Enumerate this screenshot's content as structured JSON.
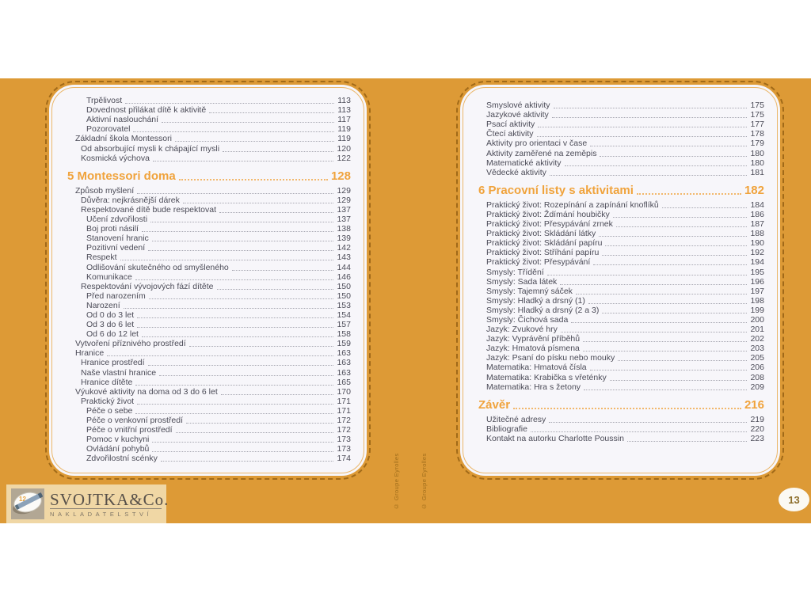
{
  "meta": {
    "page_number": "13",
    "spine_credit": "© Groupe Eyrolles"
  },
  "colors": {
    "background_band": "#DD9A36",
    "page_background": "#F7F6FA",
    "body_text": "#4B4B57",
    "heading_accent": "#F0A33C",
    "logo_box": "#F0D7A5",
    "badge_text": "#8D6E2B"
  },
  "publisher": {
    "name": "SVOJTKA&Co.",
    "subtitle": "NAKLADATELSTVÍ",
    "icon_number": "12"
  },
  "left_page": {
    "items": [
      {
        "type": "entry",
        "level": 3,
        "label": "Trpělivost",
        "page": "113"
      },
      {
        "type": "entry",
        "level": 3,
        "label": "Dovednost přilákat dítě k aktivitě",
        "page": "113"
      },
      {
        "type": "entry",
        "level": 3,
        "label": "Aktivní naslouchání",
        "page": "117"
      },
      {
        "type": "entry",
        "level": 3,
        "label": "Pozorovatel",
        "page": "119"
      },
      {
        "type": "entry",
        "level": 1,
        "label": "Základní škola Montessori",
        "page": "119"
      },
      {
        "type": "entry",
        "level": 2,
        "label": "Od absorbující mysli k chápající mysli",
        "page": "120"
      },
      {
        "type": "entry",
        "level": 2,
        "label": "Kosmická výchova",
        "page": "122"
      },
      {
        "type": "heading",
        "level": 0,
        "label": "5 Montessori doma",
        "page": "128"
      },
      {
        "type": "entry",
        "level": 1,
        "label": "Způsob myšlení",
        "page": "129"
      },
      {
        "type": "entry",
        "level": 2,
        "label": "Důvěra: nejkrásnější dárek",
        "page": "129"
      },
      {
        "type": "entry",
        "level": 2,
        "label": "Respektované dítě bude respektovat",
        "page": "137"
      },
      {
        "type": "entry",
        "level": 3,
        "label": "Učení zdvořilosti",
        "page": "137"
      },
      {
        "type": "entry",
        "level": 3,
        "label": "Boj proti násilí",
        "page": "138"
      },
      {
        "type": "entry",
        "level": 3,
        "label": "Stanovení hranic",
        "page": "139"
      },
      {
        "type": "entry",
        "level": 3,
        "label": "Pozitivní vedení",
        "page": "142"
      },
      {
        "type": "entry",
        "level": 3,
        "label": "Respekt",
        "page": "143"
      },
      {
        "type": "entry",
        "level": 3,
        "label": "Odlišování skutečného od smyšleného",
        "page": "144"
      },
      {
        "type": "entry",
        "level": 3,
        "label": "Komunikace",
        "page": "146"
      },
      {
        "type": "entry",
        "level": 2,
        "label": "Respektování vývojových fází dítěte",
        "page": "150"
      },
      {
        "type": "entry",
        "level": 3,
        "label": "Před narozením",
        "page": "150"
      },
      {
        "type": "entry",
        "level": 3,
        "label": "Narození",
        "page": "153"
      },
      {
        "type": "entry",
        "level": 3,
        "label": "Od 0 do 3 let",
        "page": "154"
      },
      {
        "type": "entry",
        "level": 3,
        "label": "Od 3 do 6 let",
        "page": "157"
      },
      {
        "type": "entry",
        "level": 3,
        "label": "Od 6 do 12 let",
        "page": "158"
      },
      {
        "type": "entry",
        "level": 1,
        "label": "Vytvoření příznivého prostředí",
        "page": "159"
      },
      {
        "type": "entry",
        "level": 1,
        "label": "Hranice",
        "page": "163"
      },
      {
        "type": "entry",
        "level": 2,
        "label": "Hranice prostředí",
        "page": "163"
      },
      {
        "type": "entry",
        "level": 2,
        "label": "Naše vlastní hranice",
        "page": "163"
      },
      {
        "type": "entry",
        "level": 2,
        "label": "Hranice dítěte",
        "page": "165"
      },
      {
        "type": "entry",
        "level": 1,
        "label": "Výukové aktivity na doma od 3 do 6 let",
        "page": "170"
      },
      {
        "type": "entry",
        "level": 2,
        "label": "Praktický život",
        "page": "171"
      },
      {
        "type": "entry",
        "level": 3,
        "label": "Péče o sebe",
        "page": "171"
      },
      {
        "type": "entry",
        "level": 3,
        "label": "Péče o venkovní prostředí",
        "page": "172"
      },
      {
        "type": "entry",
        "level": 3,
        "label": "Péče o vnitřní prostředí",
        "page": "172"
      },
      {
        "type": "entry",
        "level": 3,
        "label": "Pomoc v kuchyni",
        "page": "173"
      },
      {
        "type": "entry",
        "level": 3,
        "label": "Ovládání pohybů",
        "page": "173"
      },
      {
        "type": "entry",
        "level": 3,
        "label": "Zdvořilostní scénky",
        "page": "174"
      }
    ]
  },
  "right_page": {
    "items": [
      {
        "type": "entry",
        "level": 1,
        "label": "Smyslové aktivity",
        "page": "175"
      },
      {
        "type": "entry",
        "level": 1,
        "label": "Jazykové aktivity",
        "page": "175"
      },
      {
        "type": "entry",
        "level": 1,
        "label": "Psací aktivity",
        "page": "177"
      },
      {
        "type": "entry",
        "level": 1,
        "label": "Čtecí aktivity",
        "page": "178"
      },
      {
        "type": "entry",
        "level": 1,
        "label": "Aktivity pro orientaci v čase",
        "page": "179"
      },
      {
        "type": "entry",
        "level": 1,
        "label": "Aktivity zaměřené na zeměpis",
        "page": "180"
      },
      {
        "type": "entry",
        "level": 1,
        "label": "Matematické aktivity",
        "page": "180"
      },
      {
        "type": "entry",
        "level": 1,
        "label": "Vědecké aktivity",
        "page": "181"
      },
      {
        "type": "heading",
        "level": 0,
        "label": "6 Pracovní listy s aktivitami",
        "page": "182"
      },
      {
        "type": "entry",
        "level": 1,
        "label": "Praktický život: Rozepínání a zapínání knoflíků",
        "page": "184"
      },
      {
        "type": "entry",
        "level": 1,
        "label": "Praktický život: Ždímání houbičky",
        "page": "186"
      },
      {
        "type": "entry",
        "level": 1,
        "label": "Praktický život: Přesypávání zrnek",
        "page": "187"
      },
      {
        "type": "entry",
        "level": 1,
        "label": "Praktický život: Skládání látky",
        "page": "188"
      },
      {
        "type": "entry",
        "level": 1,
        "label": "Praktický život: Skládání papíru",
        "page": "190"
      },
      {
        "type": "entry",
        "level": 1,
        "label": "Praktický život: Stříhání papíru",
        "page": "192"
      },
      {
        "type": "entry",
        "level": 1,
        "label": "Praktický život: Přesypávání",
        "page": "194"
      },
      {
        "type": "entry",
        "level": 1,
        "label": "Smysly: Třídění",
        "page": "195"
      },
      {
        "type": "entry",
        "level": 1,
        "label": "Smysly: Sada látek",
        "page": "196"
      },
      {
        "type": "entry",
        "level": 1,
        "label": "Smysly: Tajemný sáček",
        "page": "197"
      },
      {
        "type": "entry",
        "level": 1,
        "label": "Smysly: Hladký a drsný (1)",
        "page": "198"
      },
      {
        "type": "entry",
        "level": 1,
        "label": "Smysly: Hladký a drsný (2 a 3)",
        "page": "199"
      },
      {
        "type": "entry",
        "level": 1,
        "label": "Smysly: Čichová sada",
        "page": "200"
      },
      {
        "type": "entry",
        "level": 1,
        "label": "Jazyk: Zvukové hry",
        "page": "201"
      },
      {
        "type": "entry",
        "level": 1,
        "label": "Jazyk: Vyprávění příběhů",
        "page": "202"
      },
      {
        "type": "entry",
        "level": 1,
        "label": "Jazyk: Hmatová písmena",
        "page": "203"
      },
      {
        "type": "entry",
        "level": 1,
        "label": "Jazyk: Psaní do písku nebo mouky",
        "page": "205"
      },
      {
        "type": "entry",
        "level": 1,
        "label": "Matematika: Hmatová čísla",
        "page": "206"
      },
      {
        "type": "entry",
        "level": 1,
        "label": "Matematika: Krabička s vřeténky",
        "page": "208"
      },
      {
        "type": "entry",
        "level": 1,
        "label": "Matematika: Hra s žetony",
        "page": "209"
      },
      {
        "type": "heading",
        "level": 0,
        "label": "Závěr",
        "page": "216"
      },
      {
        "type": "entry",
        "level": 1,
        "label": "Užitečné adresy",
        "page": "219"
      },
      {
        "type": "entry",
        "level": 1,
        "label": "Bibliografie",
        "page": "220"
      },
      {
        "type": "entry",
        "level": 1,
        "label": "Kontakt na autorku Charlotte Poussin",
        "page": "223"
      }
    ]
  }
}
